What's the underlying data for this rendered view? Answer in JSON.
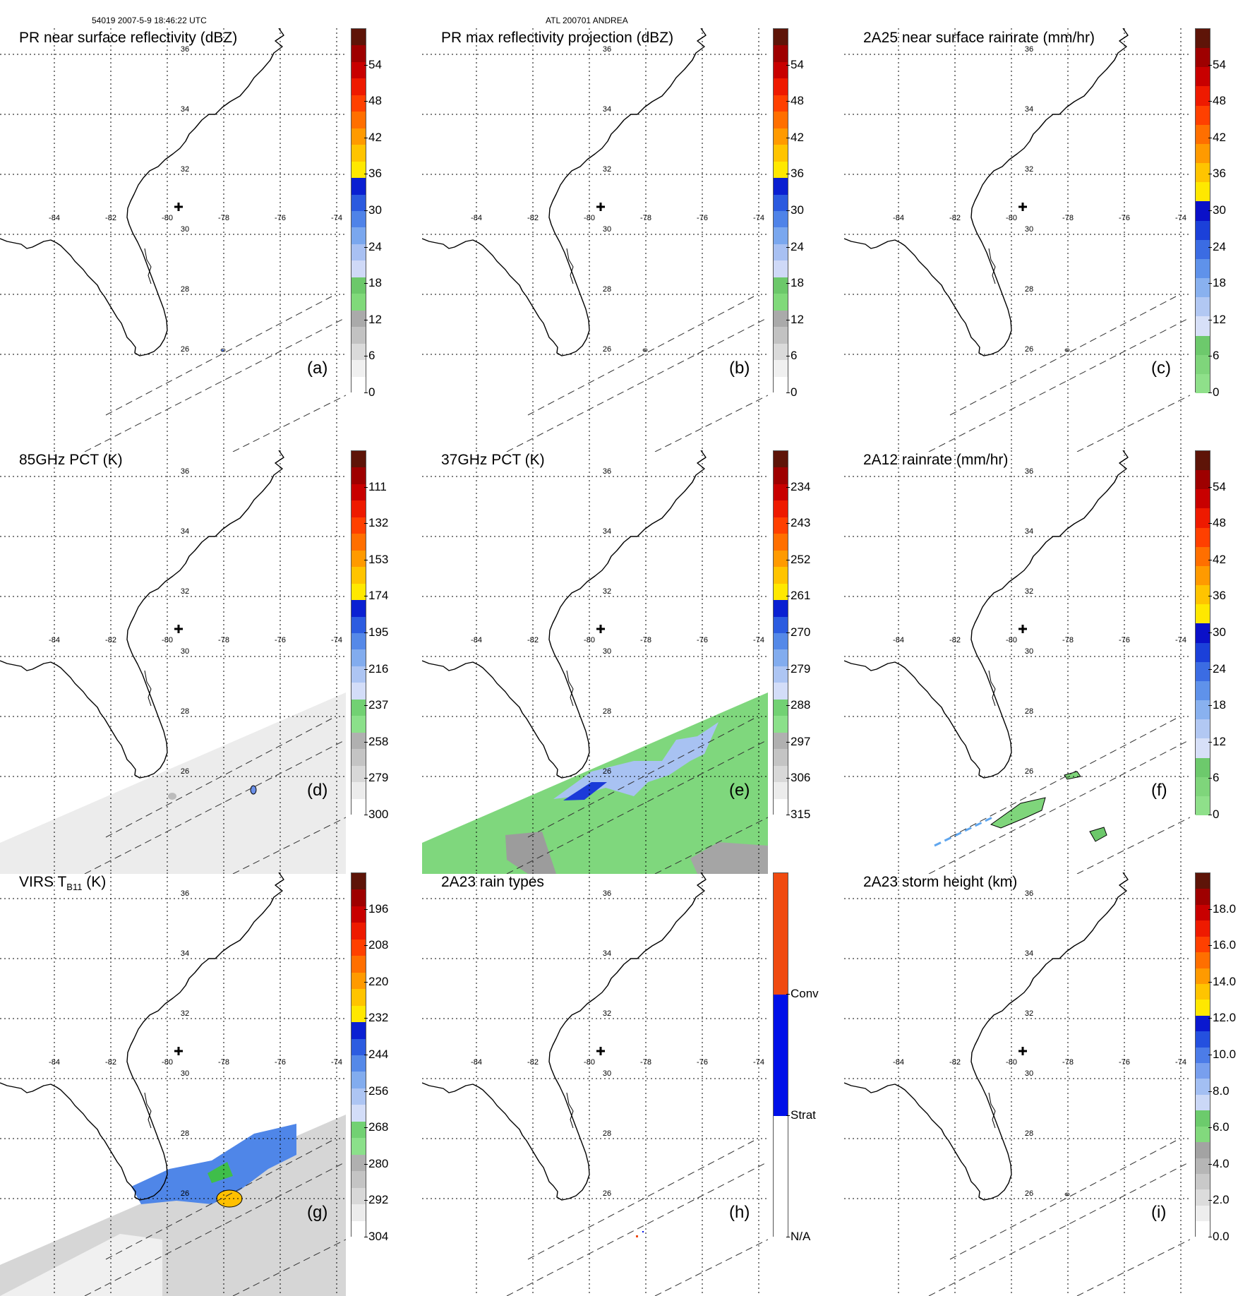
{
  "header": {
    "orbit_time": "54019 2007-5-9 18:46:22 UTC",
    "storm": "ATL 200701 ANDREA"
  },
  "map": {
    "lon_labels": [
      "-84",
      "-82",
      "-80",
      "-78",
      "-76",
      "-74"
    ],
    "lat_labels": [
      "36",
      "34",
      "32",
      "30",
      "28",
      "26"
    ],
    "center_marker": "storm-center-cross"
  },
  "panels": [
    {
      "id": "a",
      "title": "PR near surface reflectivity (dBZ)",
      "label": "(a)",
      "scale": "dbz",
      "ticks": [
        "0",
        "6",
        "12",
        "18",
        "24",
        "30",
        "36",
        "42",
        "48",
        "54"
      ],
      "overlay": "pr_echo"
    },
    {
      "id": "b",
      "title": "PR max reflectivity projection (dBZ)",
      "label": "(b)",
      "scale": "dbz",
      "ticks": [
        "0",
        "6",
        "12",
        "18",
        "24",
        "30",
        "36",
        "42",
        "48",
        "54"
      ],
      "overlay": "pr_echo"
    },
    {
      "id": "c",
      "title": "2A25 near surface rainrate (mm/hr)",
      "label": "(c)",
      "scale": "rain",
      "ticks": [
        "0",
        "6",
        "12",
        "18",
        "24",
        "30",
        "36",
        "42",
        "48",
        "54"
      ],
      "overlay": "pr_echo"
    },
    {
      "id": "d",
      "title": "85GHz PCT (K)",
      "label": "(d)",
      "scale": "tb",
      "ticks": [
        "300",
        "279",
        "258",
        "237",
        "216",
        "195",
        "174",
        "153",
        "132",
        "111"
      ],
      "overlay": "pct85"
    },
    {
      "id": "e",
      "title": "37GHz PCT (K)",
      "label": "(e)",
      "scale": "tb",
      "ticks": [
        "315",
        "306",
        "297",
        "288",
        "279",
        "270",
        "261",
        "252",
        "243",
        "234"
      ],
      "overlay": "pct37"
    },
    {
      "id": "f",
      "title": "2A12 rainrate (mm/hr)",
      "label": "(f)",
      "scale": "rain",
      "ticks": [
        "0",
        "6",
        "12",
        "18",
        "24",
        "30",
        "36",
        "42",
        "48",
        "54"
      ],
      "overlay": "tmi_rain"
    },
    {
      "id": "g",
      "title_main": "VIRS T",
      "title_sub": "B11",
      "title_unit": " (K)",
      "label": "(g)",
      "scale": "tb",
      "ticks": [
        "304",
        "292",
        "280",
        "268",
        "256",
        "244",
        "232",
        "220",
        "208",
        "196"
      ],
      "overlay": "virs"
    },
    {
      "id": "h",
      "title": "2A23 rain types",
      "label": "(h)",
      "scale": "types",
      "ticks": [
        "N/A",
        "Strat",
        "Conv"
      ],
      "overlay": "raintype"
    },
    {
      "id": "i",
      "title": "2A23 storm height (km)",
      "label": "(i)",
      "scale": "height",
      "ticks": [
        "0.0",
        "2.0",
        "4.0",
        "6.0",
        "8.0",
        "10.0",
        "12.0",
        "14.0",
        "16.0",
        "18.0"
      ],
      "overlay": "pr_echo"
    }
  ],
  "colors": {
    "dbz": [
      "#ffffff",
      "#f0f0f0",
      "#dadada",
      "#c2c2c2",
      "#aaaaaa",
      "#80d97a",
      "#6cc86a",
      "#cfd9f7",
      "#a8c0f2",
      "#7aa7ee",
      "#4f83e8",
      "#2b5adf",
      "#0a1fd1",
      "#ffe800",
      "#ffc400",
      "#ff9a00",
      "#ff6f00",
      "#ff4000",
      "#ee1a00",
      "#c80000",
      "#9e0000",
      "#5e1408"
    ],
    "rain": [
      "#8fe08a",
      "#7fd57b",
      "#6dc96c",
      "#d7e0f8",
      "#b2c8f3",
      "#89b1ef",
      "#5f92ea",
      "#3b6ce3",
      "#1b40d9",
      "#0a10c8",
      "#ffe800",
      "#ffc400",
      "#ff9a00",
      "#ff6f00",
      "#ff4000",
      "#ee1a00",
      "#c80000",
      "#9e0000",
      "#5e1408"
    ],
    "tb": [
      "#ffffff",
      "#ececec",
      "#d8d8d8",
      "#c4c4c4",
      "#b0b0b0",
      "#8be08a",
      "#72d173",
      "#d3ddf8",
      "#adc5f3",
      "#82acee",
      "#5589e8",
      "#2c5ce0",
      "#0a20d2",
      "#ffe800",
      "#ffc400",
      "#ff9a00",
      "#ff6f00",
      "#ff4000",
      "#ee1a00",
      "#c80000",
      "#9e0000",
      "#5e1408"
    ],
    "types": [
      "#ffffff",
      "#ffffff",
      "#0010e8",
      "#0010e8",
      "#f04a10",
      "#f04a10"
    ],
    "height": [
      "#ffffff",
      "#eeeeee",
      "#dcdcdc",
      "#c9c9c9",
      "#b6b6b6",
      "#a3a3a3",
      "#82d97d",
      "#6ccb6c",
      "#cbd8f7",
      "#a3bff3",
      "#789fee",
      "#4c7ce8",
      "#2450df",
      "#0a18cf",
      "#ffe800",
      "#ffc400",
      "#ff9a00",
      "#ff6f00",
      "#ff4000",
      "#ee1a00",
      "#c80000",
      "#9e0000",
      "#5e1408"
    ]
  }
}
